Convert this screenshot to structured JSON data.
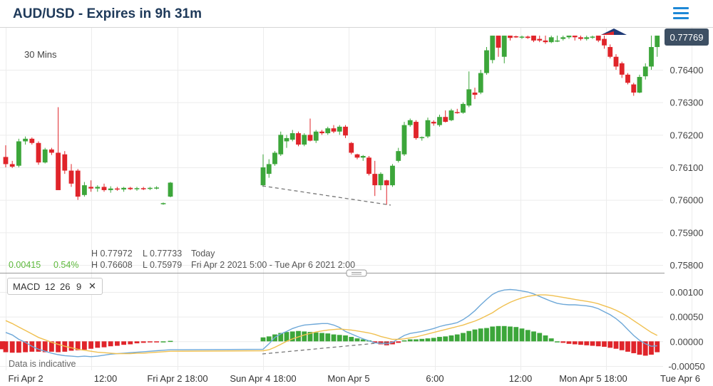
{
  "header": {
    "title": "AUD/USD - Expires in 9h 31m",
    "menu_icon": "hamburger-menu-icon"
  },
  "timeframe": "30 Mins",
  "price_tag": {
    "value": "0.77769",
    "color": "#3d4f63"
  },
  "stats": {
    "change": "0.00415",
    "change_pct": "0.54%",
    "today_high": "H 0.77972",
    "today_low": "L 0.77733",
    "today_label": "Today",
    "range_high": "H 0.76608",
    "range_low": "L 0.75979",
    "range_label": "Fri Apr 2 2021 5:00 - Tue Apr 6 2021 2:00"
  },
  "indicator": {
    "name": "MACD",
    "p1": "12",
    "p2": "26",
    "p3": "9",
    "close_icon": "close-icon"
  },
  "footer_note": "Data is indicative",
  "colors": {
    "up": "#3ca63a",
    "down": "#e0242a",
    "macd_line": "#6ea8d8",
    "signal_line": "#f0c050"
  },
  "chart_data": {
    "type": "candlestick",
    "price_axis": {
      "ticks": [
        "0.76400",
        "0.76300",
        "0.76200",
        "0.76100",
        "0.76000",
        "0.75900",
        "0.75800"
      ],
      "ylim": [
        0.75795,
        0.76505
      ]
    },
    "macd_axis": {
      "ticks": [
        "0.00100",
        "0.00050",
        "0.00000",
        "-0.00050"
      ],
      "ylim": [
        -0.00055,
        0.0013
      ]
    },
    "time_labels": [
      "Fri Apr 2",
      "12:00",
      "Fri Apr 2 18:00",
      "Sun Apr 4 18:00",
      "Mon Apr 5",
      "6:00",
      "12:00",
      "Mon Apr 5 18:00",
      "Tue Apr 6"
    ],
    "candles": [
      [
        0.76132,
        0.76168,
        0.761,
        0.7611
      ],
      [
        0.7611,
        0.7612,
        0.76098,
        0.76102
      ],
      [
        0.76105,
        0.76188,
        0.761,
        0.7618
      ],
      [
        0.7618,
        0.76195,
        0.7617,
        0.76188
      ],
      [
        0.76188,
        0.76192,
        0.7617,
        0.76175
      ],
      [
        0.76175,
        0.7618,
        0.76108,
        0.76115
      ],
      [
        0.76115,
        0.7616,
        0.76112,
        0.76155
      ],
      [
        0.76155,
        0.7616,
        0.76138,
        0.76145
      ],
      [
        0.76145,
        0.76285,
        0.7603,
        0.7603
      ],
      [
        0.7614,
        0.7615,
        0.7608,
        0.7609
      ],
      [
        0.7609,
        0.7611,
        0.7604,
        0.7605
      ],
      [
        0.7609,
        0.76095,
        0.76,
        0.7601
      ],
      [
        0.76015,
        0.76055,
        0.7601,
        0.76045
      ],
      [
        0.7604,
        0.7606,
        0.76025,
        0.76035
      ],
      [
        0.76035,
        0.76045,
        0.76025,
        0.7604
      ],
      [
        0.7604,
        0.7605,
        0.76025,
        0.7603
      ],
      [
        0.7603,
        0.76042,
        0.76022,
        0.76035
      ],
      [
        0.76035,
        0.7604,
        0.76028,
        0.76032
      ],
      [
        0.76032,
        0.7604,
        0.76025,
        0.76037
      ],
      [
        0.76037,
        0.7604,
        0.7603,
        0.76033
      ],
      [
        0.76033,
        0.7604,
        0.76028,
        0.76036
      ],
      [
        0.76036,
        0.7604,
        0.7603,
        0.76034
      ],
      [
        0.76034,
        0.7604,
        0.7603,
        0.76037
      ],
      [
        0.76037,
        0.76042,
        0.76032,
        0.76038
      ],
      [
        0.75988,
        0.75992,
        0.75985,
        0.7599
      ],
      [
        0.7601,
        0.76055,
        0.76008,
        0.76053
      ],
      [
        0.76045,
        0.7614,
        0.7604,
        0.761
      ],
      [
        0.7608,
        0.76125,
        0.76068,
        0.7611
      ],
      [
        0.7611,
        0.7615,
        0.76105,
        0.76145
      ],
      [
        0.7614,
        0.7621,
        0.76135,
        0.762
      ],
      [
        0.7618,
        0.762,
        0.7616,
        0.7619
      ],
      [
        0.76185,
        0.76215,
        0.7618,
        0.76205
      ],
      [
        0.76205,
        0.7621,
        0.76165,
        0.7617
      ],
      [
        0.7617,
        0.76205,
        0.76165,
        0.762
      ],
      [
        0.762,
        0.7625,
        0.7618,
        0.76182
      ],
      [
        0.76182,
        0.76215,
        0.76175,
        0.7621
      ],
      [
        0.7621,
        0.76215,
        0.762,
        0.76205
      ],
      [
        0.76205,
        0.76225,
        0.762,
        0.7622
      ],
      [
        0.7622,
        0.7623,
        0.76205,
        0.7621
      ],
      [
        0.7621,
        0.7623,
        0.762,
        0.76225
      ],
      [
        0.76225,
        0.7623,
        0.7619,
        0.76198
      ],
      [
        0.76175,
        0.76178,
        0.7614,
        0.76145
      ],
      [
        0.7614,
        0.76142,
        0.76125,
        0.7613
      ],
      [
        0.7613,
        0.76138,
        0.7612,
        0.76135
      ],
      [
        0.7613,
        0.76135,
        0.76075,
        0.7608
      ],
      [
        0.7608,
        0.7612,
        0.76012,
        0.76045
      ],
      [
        0.76045,
        0.76085,
        0.7603,
        0.7608
      ],
      [
        0.7606,
        0.76062,
        0.75985,
        0.76045
      ],
      [
        0.76045,
        0.7611,
        0.7604,
        0.76105
      ],
      [
        0.7612,
        0.7616,
        0.76115,
        0.7615
      ],
      [
        0.7614,
        0.7624,
        0.76135,
        0.7623
      ],
      [
        0.7623,
        0.7625,
        0.76225,
        0.76245
      ],
      [
        0.7624,
        0.76245,
        0.76185,
        0.7619
      ],
      [
        0.7619,
        0.76195,
        0.76182,
        0.76193
      ],
      [
        0.76195,
        0.76253,
        0.7619,
        0.76245
      ],
      [
        0.7624,
        0.76245,
        0.76228,
        0.76235
      ],
      [
        0.7623,
        0.76262,
        0.76225,
        0.76255
      ],
      [
        0.76255,
        0.76275,
        0.76238,
        0.7624
      ],
      [
        0.76245,
        0.7628,
        0.76242,
        0.76275
      ],
      [
        0.7627,
        0.7628,
        0.76265,
        0.76268
      ],
      [
        0.76268,
        0.763,
        0.76265,
        0.76295
      ],
      [
        0.7629,
        0.76395,
        0.76285,
        0.7634
      ],
      [
        0.7633,
        0.76345,
        0.7631,
        0.76323
      ],
      [
        0.7633,
        0.764,
        0.76325,
        0.7639
      ],
      [
        0.7639,
        0.7647,
        0.76385,
        0.7646
      ],
      [
        0.7643,
        0.76505,
        0.7642,
        0.76505
      ],
      [
        0.76505,
        0.76505,
        0.7644,
        0.76468
      ],
      [
        0.7644,
        0.76505,
        0.7642,
        0.76505
      ],
      [
        0.76505,
        0.76505,
        0.7649,
        0.76498
      ],
      [
        0.76503,
        0.76505,
        0.76498,
        0.765
      ],
      [
        0.765,
        0.76505,
        0.76495,
        0.76502
      ],
      [
        0.76502,
        0.76505,
        0.76495,
        0.76498
      ],
      [
        0.76505,
        0.76505,
        0.76485,
        0.7649
      ],
      [
        0.76495,
        0.76505,
        0.76485,
        0.7649
      ],
      [
        0.7649,
        0.76505,
        0.7648,
        0.76485
      ],
      [
        0.76485,
        0.76505,
        0.76482,
        0.765
      ],
      [
        0.7649,
        0.76505,
        0.76485,
        0.7649
      ],
      [
        0.76495,
        0.76505,
        0.7649,
        0.765
      ],
      [
        0.765,
        0.76505,
        0.76495,
        0.76505
      ],
      [
        0.76505,
        0.76505,
        0.7649,
        0.765
      ],
      [
        0.765,
        0.76505,
        0.7649,
        0.76495
      ],
      [
        0.76495,
        0.76505,
        0.7649,
        0.765
      ],
      [
        0.765,
        0.76505,
        0.76495,
        0.76502
      ],
      [
        0.76505,
        0.76505,
        0.76485,
        0.7649
      ],
      [
        0.76495,
        0.76505,
        0.76465,
        0.76475
      ],
      [
        0.7647,
        0.76478,
        0.76435,
        0.7644
      ],
      [
        0.7644,
        0.76448,
        0.764,
        0.7641
      ],
      [
        0.7642,
        0.76425,
        0.76375,
        0.76385
      ],
      [
        0.76385,
        0.7639,
        0.76355,
        0.7636
      ],
      [
        0.76355,
        0.7636,
        0.7632,
        0.7633
      ],
      [
        0.7633,
        0.76385,
        0.76328,
        0.76378
      ],
      [
        0.7638,
        0.7642,
        0.7637,
        0.7641
      ],
      [
        0.7641,
        0.76505,
        0.764,
        0.7647
      ],
      [
        0.7647,
        0.76505,
        0.7644,
        0.76505
      ]
    ],
    "macd_series": {
      "histogram": [
        -0.00022,
        -0.00023,
        -0.00023,
        -0.00022,
        -0.00021,
        -0.00021,
        -0.00022,
        -0.00021,
        -0.00022,
        -0.00021,
        -0.00019,
        -0.00018,
        -0.00017,
        -0.00015,
        -0.00013,
        -0.00012,
        -0.0001,
        -9e-05,
        -7e-05,
        -6e-05,
        -4e-05,
        -3e-05,
        -2e-05,
        -1e-05,
        0.0,
        1e-05,
        8e-05,
        0.0001,
        0.00014,
        0.00017,
        0.00019,
        0.0002,
        0.00021,
        0.0002,
        0.00019,
        0.00018,
        0.00017,
        0.00016,
        0.00014,
        0.00013,
        0.00012,
        9e-05,
        6e-05,
        4e-05,
        2e-05,
        -3e-05,
        -6e-05,
        -8e-05,
        -6e-05,
        -3e-05,
        2e-05,
        4e-05,
        4e-05,
        5e-05,
        6e-05,
        7e-05,
        9e-05,
        0.0001,
        0.00012,
        0.00014,
        0.00017,
        0.00021,
        0.00024,
        0.00026,
        0.00027,
        0.0003,
        0.00031,
        0.00031,
        0.0003,
        0.00029,
        0.00026,
        0.00023,
        0.0002,
        0.00017,
        0.00012,
        6e-05,
        0.0,
        -3e-05,
        -5e-05,
        -6e-05,
        -7e-05,
        -8e-05,
        -9e-05,
        -0.0001,
        -0.00011,
        -0.00013,
        -0.00015,
        -0.00018,
        -0.00021,
        -0.00024,
        -0.00027,
        -0.00029,
        -0.00027,
        -0.00022,
        -0.00016,
        -0.0001
      ],
      "macd_line": [
        0.00018,
        0.00013,
        4e-05,
        -2e-05,
        -0.0001,
        -0.00016,
        -0.0002,
        -0.00024,
        -0.00027,
        -0.00029,
        -0.0003,
        -0.00031,
        -0.0003,
        -0.00031,
        -0.0003,
        -0.00028,
        -0.00026,
        -0.00025,
        -0.00024,
        -0.00023,
        -0.00022,
        -0.00021,
        -0.0002,
        -0.00019,
        -0.00018,
        -0.00017,
        -0.00016,
        -5e-05,
        8e-05,
        0.00015,
        0.0002,
        0.00026,
        0.0003,
        0.00033,
        0.00034,
        0.00035,
        0.00036,
        0.00036,
        0.00033,
        0.00028,
        0.0002,
        0.00015,
        0.0001,
        5e-05,
        1e-05,
        -3e-05,
        -4e-05,
        -5e-05,
        -2e-05,
        5e-05,
        0.00012,
        0.00016,
        0.00018,
        0.0002,
        0.00023,
        0.00026,
        0.0003,
        0.00033,
        0.00035,
        0.00038,
        0.00044,
        0.00052,
        0.00062,
        0.00074,
        0.00085,
        0.00095,
        0.00101,
        0.00104,
        0.00105,
        0.00104,
        0.00102,
        0.001,
        0.00096,
        0.00091,
        0.00086,
        0.00081,
        0.00077,
        0.00075,
        0.00074,
        0.00074,
        0.00073,
        0.00072,
        0.0007,
        0.00066,
        0.0006,
        0.00054,
        0.00046,
        0.00036,
        0.00024,
        0.00012,
        2e-05,
        -5e-05,
        -0.0001,
        -9e-05,
        -6e-05,
        -4e-05
      ],
      "signal_line": [
        0.00042,
        0.00036,
        0.00029,
        0.00022,
        0.00015,
        8e-05,
        3e-05,
        -2e-05,
        -6e-05,
        -0.0001,
        -0.00013,
        -0.00016,
        -0.00018,
        -0.0002,
        -0.00022,
        -0.00023,
        -0.00024,
        -0.00025,
        -0.00025,
        -0.00025,
        -0.00024,
        -0.00024,
        -0.00023,
        -0.00022,
        -0.00021,
        -0.0002,
        -0.00019,
        -0.00017,
        -0.00012,
        -6e-05,
        0.0,
        5e-05,
        9e-05,
        0.00013,
        0.00016,
        0.00019,
        0.00021,
        0.00023,
        0.00024,
        0.00025,
        0.00024,
        0.00023,
        0.00021,
        0.00019,
        0.00017,
        0.00014,
        0.0001,
        7e-05,
        4e-05,
        4e-05,
        5e-05,
        7e-05,
        9e-05,
        0.00012,
        0.00015,
        0.00018,
        0.00021,
        0.00024,
        0.00027,
        0.0003,
        0.00033,
        0.00037,
        0.00041,
        0.00046,
        0.00052,
        0.00058,
        0.00066,
        0.00073,
        0.00079,
        0.00084,
        0.00088,
        0.00091,
        0.00093,
        0.00094,
        0.00094,
        0.00093,
        0.00091,
        0.00089,
        0.00087,
        0.00085,
        0.00083,
        0.00081,
        0.00079,
        0.00076,
        0.00072,
        0.00068,
        0.00063,
        0.00057,
        0.0005,
        0.00042,
        0.00034,
        0.00026,
        0.00018,
        0.00012,
        8e-05,
        6e-05
      ]
    }
  }
}
